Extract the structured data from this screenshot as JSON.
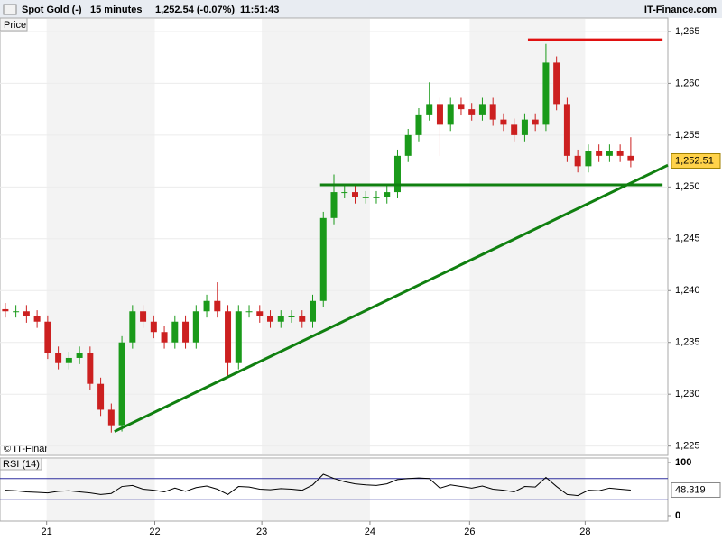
{
  "chart_data": {
    "type": "candlestick",
    "header": {
      "instrument": "Spot Gold (-)",
      "interval": "15 minutes",
      "quote": "1,252.54 (-0.07%)",
      "time": "11:51:43",
      "brand": "IT-Finance.com"
    },
    "price_label": "Price",
    "copyright": "© IT-Finance.com",
    "xlim": [
      -0.5,
      62.5
    ],
    "xticks": [
      {
        "value": 3.9,
        "label": "21"
      },
      {
        "value": 14.1,
        "label": "22"
      },
      {
        "value": 24.2,
        "label": "23"
      },
      {
        "value": 34.4,
        "label": "24"
      },
      {
        "value": 43.8,
        "label": "26"
      },
      {
        "value": 54.7,
        "label": "28"
      }
    ],
    "ylim": [
      1224.1,
      1266.3
    ],
    "yticks": [
      {
        "value": 1225,
        "label": "1,225"
      },
      {
        "value": 1230,
        "label": "1,230"
      },
      {
        "value": 1235,
        "label": "1,235"
      },
      {
        "value": 1240,
        "label": "1,240"
      },
      {
        "value": 1245,
        "label": "1,245"
      },
      {
        "value": 1250,
        "label": "1,250"
      },
      {
        "value": 1255,
        "label": "1,255"
      },
      {
        "value": 1260,
        "label": "1,260"
      },
      {
        "value": 1265,
        "label": "1,265"
      }
    ],
    "up_color": "#1a9a1a",
    "down_color": "#cc2020",
    "open": [
      1238.2,
      1238,
      1238,
      1237.5,
      1237,
      1234,
      1233,
      1233.5,
      1234,
      1231,
      1228.5,
      1227,
      1235,
      1238,
      1237,
      1236,
      1235,
      1237,
      1235,
      1238,
      1239,
      1238,
      1233,
      1238,
      1238,
      1237.5,
      1237,
      1237.5,
      1237.5,
      1237,
      1239,
      1247,
      1249.5,
      1249.5,
      1249,
      1249,
      1249,
      1249.5,
      1253,
      1255,
      1257,
      1258,
      1256,
      1258,
      1257.5,
      1257,
      1258,
      1256.5,
      1256,
      1255,
      1256.5,
      1256,
      1262,
      1258,
      1253,
      1252,
      1253.5,
      1253,
      1253.5,
      1253
    ],
    "high": [
      1238.8,
      1238.6,
      1238.6,
      1238.1,
      1237.6,
      1234.6,
      1234.1,
      1234.6,
      1234.6,
      1231.6,
      1229.1,
      1235.6,
      1238.6,
      1238.6,
      1237.6,
      1236.6,
      1237.6,
      1237.6,
      1238.6,
      1239.6,
      1240.8,
      1238.6,
      1238.6,
      1238.6,
      1238.6,
      1238.1,
      1238.1,
      1238.1,
      1238.1,
      1239.6,
      1247.6,
      1251.2,
      1250.1,
      1250.1,
      1249.6,
      1249.6,
      1250.1,
      1253.6,
      1255.6,
      1257.6,
      1260.1,
      1258.6,
      1258.6,
      1258.6,
      1258.1,
      1258.6,
      1258.6,
      1257.1,
      1256.6,
      1257.1,
      1257.1,
      1263.8,
      1262.6,
      1258.6,
      1253.6,
      1254.1,
      1254.1,
      1254.1,
      1254.1,
      1254.8
    ],
    "low": [
      1237.4,
      1237.4,
      1236.9,
      1236.4,
      1233.4,
      1232.4,
      1232.4,
      1232.9,
      1230.4,
      1227.9,
      1226.3,
      1226.4,
      1234.4,
      1236.4,
      1235.4,
      1234.4,
      1234.4,
      1234.4,
      1234.4,
      1237.4,
      1237.4,
      1231.8,
      1232.4,
      1237.4,
      1236.9,
      1236.4,
      1236.4,
      1236.9,
      1236.4,
      1236.4,
      1238.4,
      1246.4,
      1248.9,
      1248.4,
      1248.4,
      1248.4,
      1248.4,
      1248.9,
      1252.4,
      1254.4,
      1256.4,
      1253,
      1255.4,
      1256.9,
      1256.4,
      1256.4,
      1255.9,
      1255.4,
      1254.4,
      1254.4,
      1255.4,
      1255.4,
      1257.4,
      1252.4,
      1251.4,
      1251.4,
      1252.4,
      1252.4,
      1252.4,
      1251.9
    ],
    "close": [
      1238,
      1238,
      1237.5,
      1237,
      1234,
      1233,
      1233.5,
      1234,
      1231,
      1228.5,
      1227,
      1235,
      1238,
      1237,
      1236,
      1235,
      1237,
      1235,
      1238,
      1239,
      1238,
      1233,
      1238,
      1238,
      1237.5,
      1237,
      1237.5,
      1237.5,
      1237,
      1239,
      1247,
      1249.5,
      1249.5,
      1249,
      1249,
      1249,
      1249.5,
      1253,
      1255,
      1257,
      1258,
      1256,
      1258,
      1257.5,
      1257,
      1258,
      1256.5,
      1256,
      1255,
      1256.5,
      1256,
      1262,
      1258,
      1253,
      1252,
      1253.5,
      1253,
      1253.5,
      1253,
      1252.5
    ],
    "last_price": {
      "value": 1252.51,
      "label": "1,252.51"
    },
    "lines": [
      {
        "color": "#e01010",
        "from": [
          49.3,
          1264.2
        ],
        "to": [
          62.0,
          1264.2
        ]
      },
      {
        "color": "#108010",
        "from": [
          29.7,
          1250.2
        ],
        "to": [
          62.0,
          1250.2
        ]
      },
      {
        "color": "#108010",
        "from": [
          10.3,
          1226.4
        ],
        "to": [
          62.5,
          1252.1
        ]
      }
    ],
    "rsi": {
      "title": "RSI (14)",
      "ylim": [
        -10.2,
        108.5
      ],
      "yticks": [
        0,
        100
      ],
      "levels": [
        30,
        70
      ],
      "values": [
        48,
        47,
        45,
        44,
        43,
        46,
        47,
        45,
        43,
        40,
        42,
        55,
        57,
        50,
        48,
        45,
        52,
        46,
        53,
        56,
        50,
        40,
        55,
        54,
        50,
        49,
        51,
        50,
        48,
        58,
        78,
        70,
        64,
        60,
        58,
        57,
        60,
        68,
        70,
        71,
        70,
        52,
        58,
        55,
        52,
        56,
        50,
        48,
        45,
        55,
        54,
        72,
        55,
        40,
        38,
        48,
        47,
        52,
        50,
        48.319
      ]
    }
  }
}
